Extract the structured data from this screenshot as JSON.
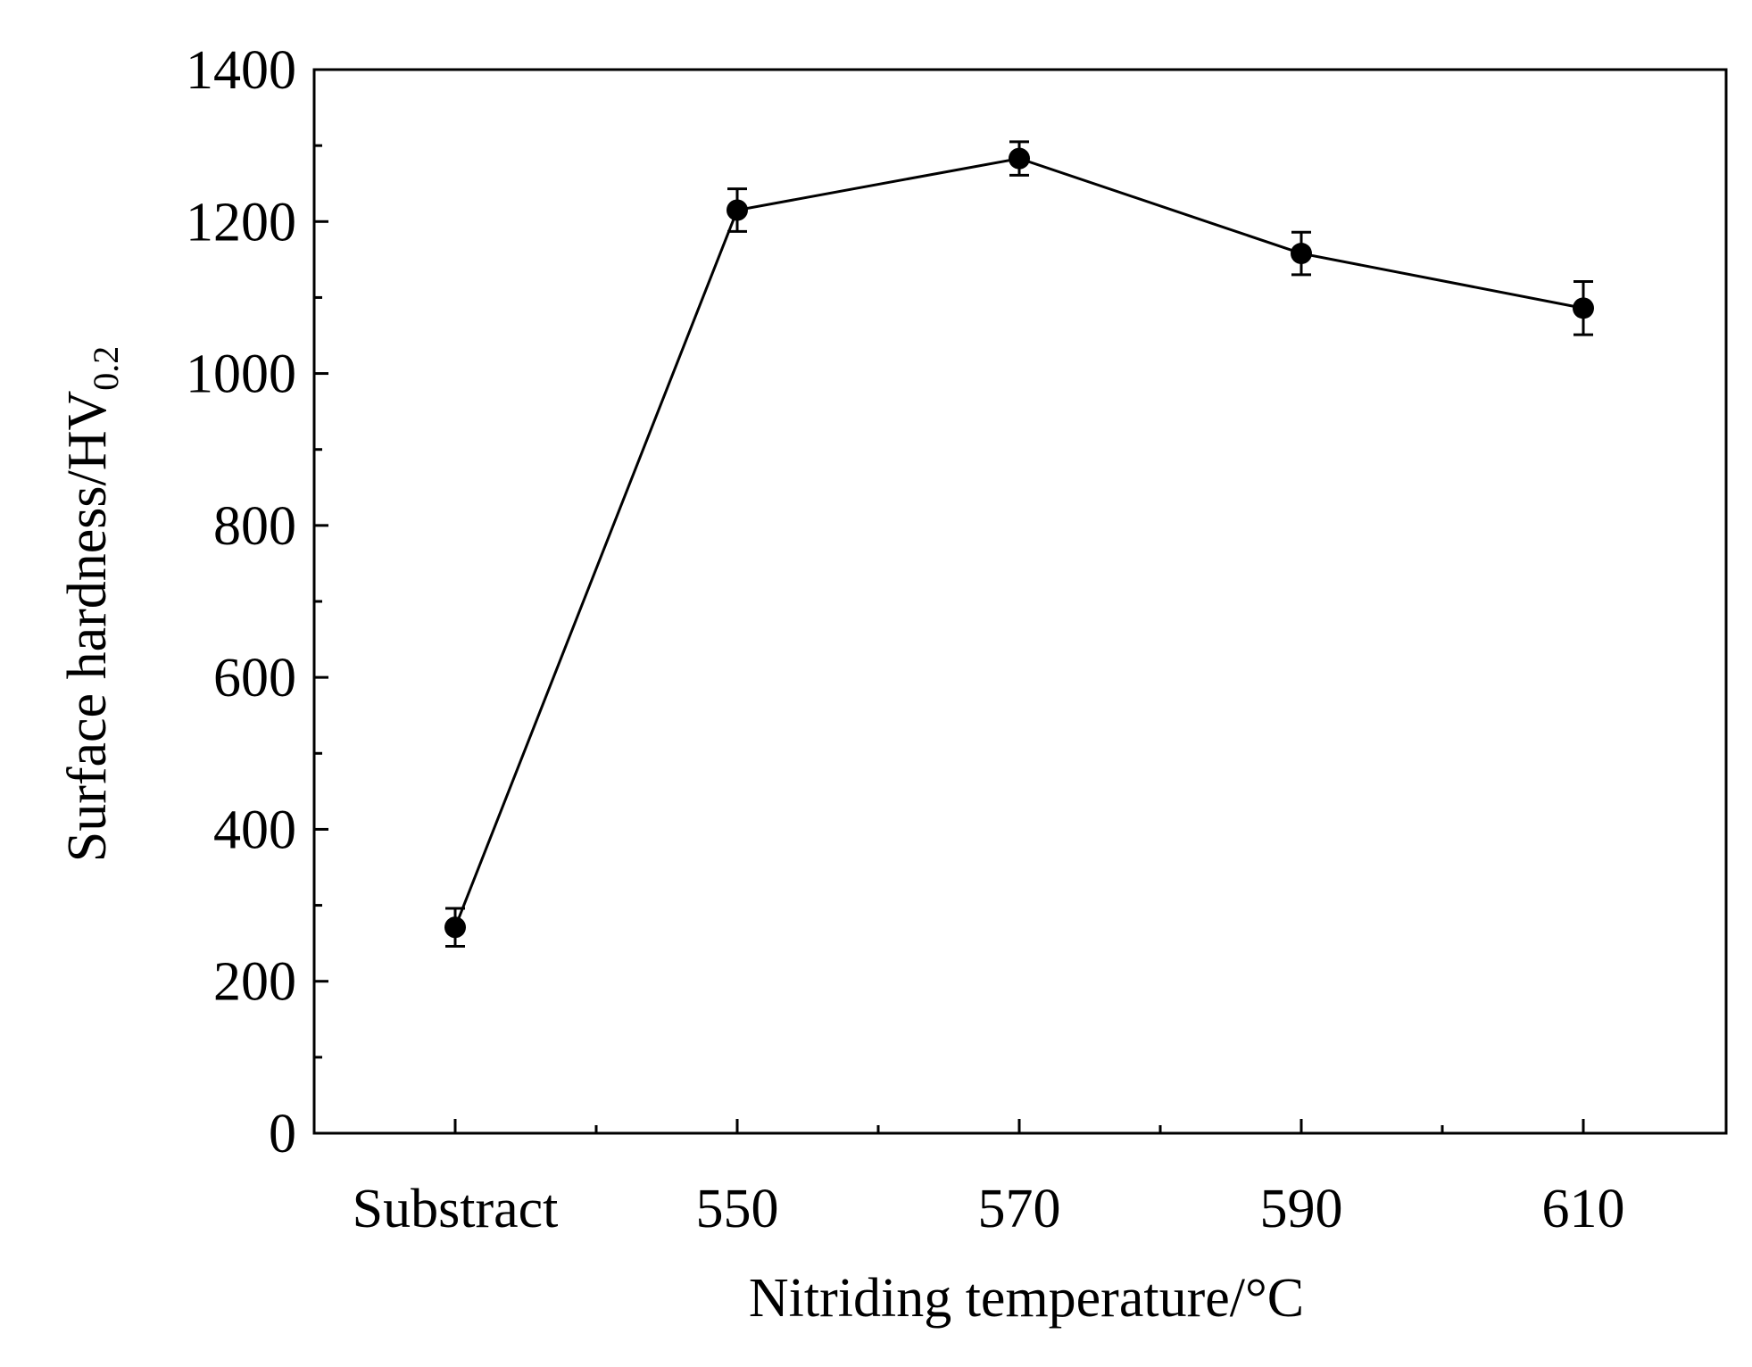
{
  "chart_data": {
    "type": "line",
    "title": "",
    "categories": [
      "Substract",
      "550",
      "570",
      "590",
      "610"
    ],
    "series": [
      {
        "name": "Surface hardness",
        "values": [
          271,
          1215,
          1283,
          1158,
          1086
        ],
        "error": [
          25,
          28,
          22,
          28,
          35
        ],
        "color": "#000000",
        "marker": "filled-circle"
      }
    ],
    "xlabel": "Nitriding temperature/°C",
    "ylabel_main": "Surface hardness/HV",
    "ylabel_sub": "0.2",
    "ylim": [
      0,
      1400
    ],
    "yticks": [
      0,
      200,
      400,
      600,
      800,
      1000,
      1200,
      1400
    ],
    "grid": false,
    "legend": "none"
  }
}
